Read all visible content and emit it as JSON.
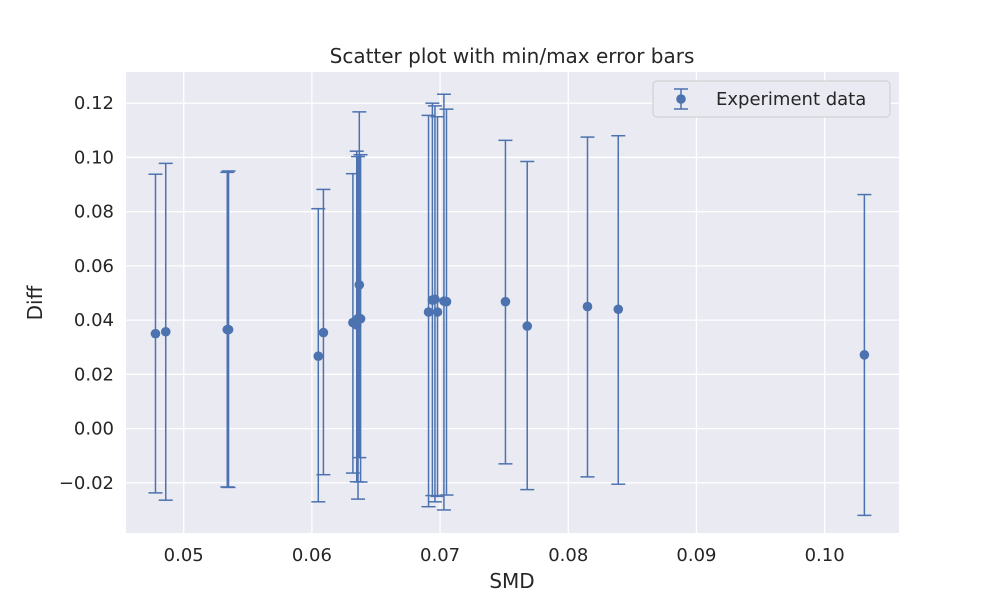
{
  "chart_data": {
    "type": "scatter",
    "title": "Scatter plot with min/max error bars",
    "xlabel": "SMD",
    "ylabel": "Diff",
    "xlim": [
      0.0455,
      0.1058
    ],
    "ylim": [
      -0.0385,
      0.1315
    ],
    "x_ticks": [
      0.05,
      0.06,
      0.07,
      0.08,
      0.09,
      0.1
    ],
    "x_tick_labels": [
      "0.05",
      "0.06",
      "0.07",
      "0.08",
      "0.09",
      "0.10"
    ],
    "y_ticks": [
      -0.02,
      0.0,
      0.02,
      0.04,
      0.06,
      0.08,
      0.1,
      0.12
    ],
    "y_tick_labels": [
      "−0.02",
      "0.00",
      "0.02",
      "0.04",
      "0.06",
      "0.08",
      "0.10",
      "0.12"
    ],
    "grid": true,
    "legend_position": "top-right",
    "colors": {
      "series": "#4c72b0",
      "plot_background": "#eaeaf2",
      "grid": "#ffffff"
    },
    "series": [
      {
        "name": "Experiment data",
        "points": [
          {
            "x": 0.0478,
            "y": 0.035,
            "min": -0.0237,
            "max": 0.0938
          },
          {
            "x": 0.0486,
            "y": 0.0357,
            "min": -0.0264,
            "max": 0.0978
          },
          {
            "x": 0.0534,
            "y": 0.0365,
            "min": -0.0215,
            "max": 0.0945
          },
          {
            "x": 0.0535,
            "y": 0.0365,
            "min": -0.0217,
            "max": 0.095
          },
          {
            "x": 0.0605,
            "y": 0.0267,
            "min": -0.027,
            "max": 0.0811
          },
          {
            "x": 0.0609,
            "y": 0.0354,
            "min": -0.017,
            "max": 0.0882
          },
          {
            "x": 0.0632,
            "y": 0.0391,
            "min": -0.0164,
            "max": 0.094
          },
          {
            "x": 0.0635,
            "y": 0.0382,
            "min": -0.0196,
            "max": 0.1023
          },
          {
            "x": 0.0636,
            "y": 0.0406,
            "min": -0.026,
            "max": 0.1003
          },
          {
            "x": 0.0637,
            "y": 0.053,
            "min": -0.0107,
            "max": 0.1168
          },
          {
            "x": 0.0638,
            "y": 0.0405,
            "min": -0.0197,
            "max": 0.101
          },
          {
            "x": 0.0691,
            "y": 0.043,
            "min": -0.0288,
            "max": 0.1155
          },
          {
            "x": 0.0694,
            "y": 0.0474,
            "min": -0.0247,
            "max": 0.12
          },
          {
            "x": 0.0696,
            "y": 0.0477,
            "min": -0.027,
            "max": 0.119
          },
          {
            "x": 0.0698,
            "y": 0.043,
            "min": -0.025,
            "max": 0.115
          },
          {
            "x": 0.0703,
            "y": 0.047,
            "min": -0.03,
            "max": 0.1233
          },
          {
            "x": 0.0705,
            "y": 0.0468,
            "min": -0.0245,
            "max": 0.1178
          },
          {
            "x": 0.0751,
            "y": 0.0468,
            "min": -0.013,
            "max": 0.1063
          },
          {
            "x": 0.0768,
            "y": 0.0378,
            "min": -0.0225,
            "max": 0.0985
          },
          {
            "x": 0.0815,
            "y": 0.045,
            "min": -0.0178,
            "max": 0.1075
          },
          {
            "x": 0.0839,
            "y": 0.044,
            "min": -0.0205,
            "max": 0.108
          },
          {
            "x": 0.1031,
            "y": 0.0272,
            "min": -0.032,
            "max": 0.0863
          }
        ]
      }
    ]
  }
}
